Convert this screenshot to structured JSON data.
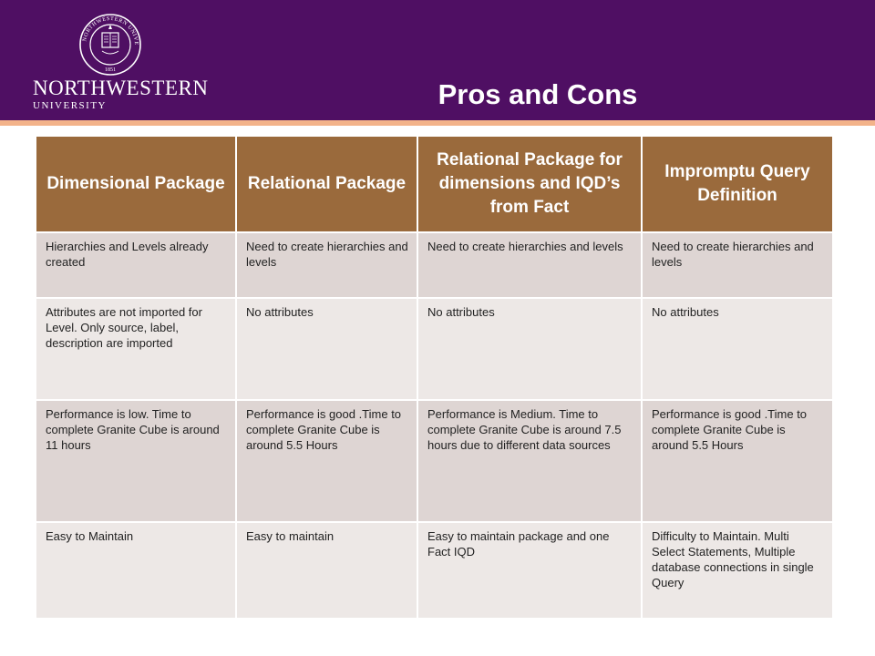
{
  "header": {
    "logo_name": "NORTHWESTERN",
    "logo_sub": "UNIVERSITY",
    "seal_text": "NORTHWESTERN UNIVERSITY",
    "seal_year": "1851"
  },
  "slide": {
    "title": "Pros and Cons"
  },
  "table": {
    "columns": [
      "Dimensional Package",
      "Relational Package",
      "Relational Package for dimensions and IQD’s from Fact",
      "Impromptu Query Definition"
    ],
    "rows": [
      [
        "Hierarchies and Levels already created",
        "Need to create hierarchies and levels",
        "Need to create hierarchies and levels",
        "Need to create hierarchies and levels"
      ],
      [
        "Attributes are not imported for Level. Only source, label, description are imported",
        "No attributes",
        "No attributes",
        "No attributes"
      ],
      [
        "Performance is low. Time to complete Granite Cube is around 11 hours",
        "Performance is good .Time to complete Granite Cube is around 5.5 Hours",
        "Performance is Medium. Time to complete Granite Cube is around 7.5 hours due to different data sources",
        "Performance is good .Time to complete Granite Cube is around 5.5 Hours"
      ],
      [
        "Easy to Maintain",
        "Easy to maintain",
        "Easy to maintain package and one Fact IQD",
        "Difficulty to Maintain. Multi Select Statements, Multiple database connections in single Query"
      ]
    ]
  }
}
